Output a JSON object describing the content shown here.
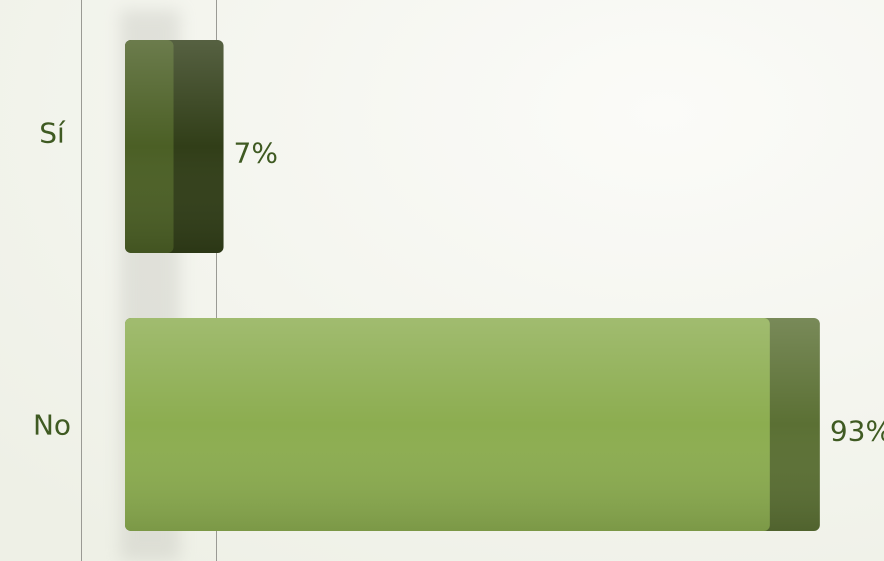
{
  "chart_data": {
    "type": "bar",
    "orientation": "horizontal",
    "categories": [
      "Sí",
      "No"
    ],
    "values": [
      7,
      93
    ],
    "value_labels": [
      "7%",
      "93%"
    ],
    "colors": [
      "#4b5f25",
      "#8cad50"
    ]
  }
}
